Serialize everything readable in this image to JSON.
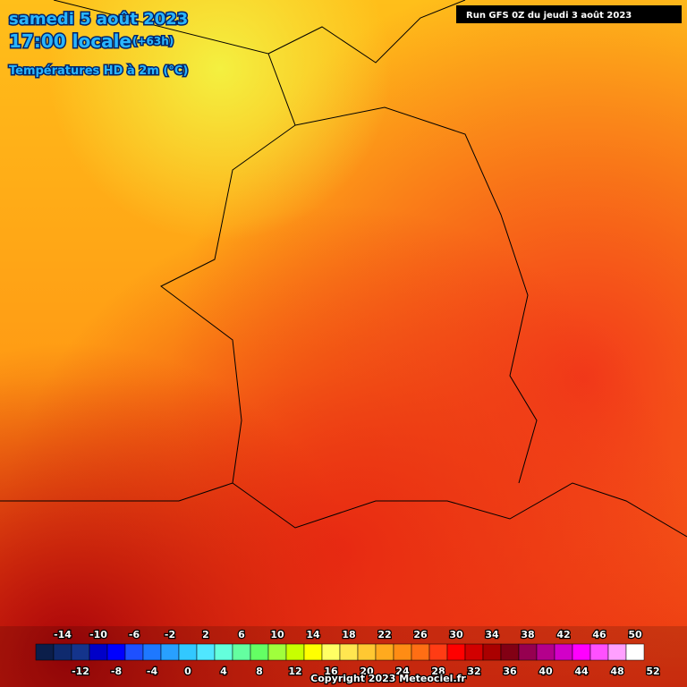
{
  "header": {
    "date": "samedi 5 août 2023",
    "time": "17:00 locale",
    "lead": "(+63h)",
    "field": "Températures HD à 2m (°C)",
    "run": "Run GFS 0Z du jeudi 3 août 2023"
  },
  "scale": {
    "ticks_top": [
      -14,
      -10,
      -6,
      -2,
      2,
      6,
      10,
      14,
      18,
      22,
      26,
      30,
      34,
      38,
      42,
      46,
      50
    ],
    "ticks_bottom": [
      -12,
      -8,
      -4,
      0,
      4,
      8,
      12,
      16,
      20,
      24,
      28,
      32,
      36,
      40,
      44,
      48,
      52
    ],
    "colors": [
      "#0b1e4a",
      "#0f2a6e",
      "#14348c",
      "#0000c8",
      "#0000ff",
      "#1e50ff",
      "#1e78ff",
      "#28a0ff",
      "#32c8ff",
      "#50e6ff",
      "#64ffdc",
      "#64ffa0",
      "#64ff64",
      "#a0ff3c",
      "#c8ff00",
      "#ffff00",
      "#ffff64",
      "#ffe650",
      "#ffc832",
      "#ffaa1e",
      "#ff8c14",
      "#ff6e14",
      "#ff3c14",
      "#ff0000",
      "#d20000",
      "#aa0000",
      "#820014",
      "#960050",
      "#b4008c",
      "#d200c8",
      "#ff00ff",
      "#ff50ff",
      "#ffa0ff",
      "#ffffff"
    ]
  },
  "footer": {
    "copyright": "Copyright 2023 Meteociel.fr"
  }
}
